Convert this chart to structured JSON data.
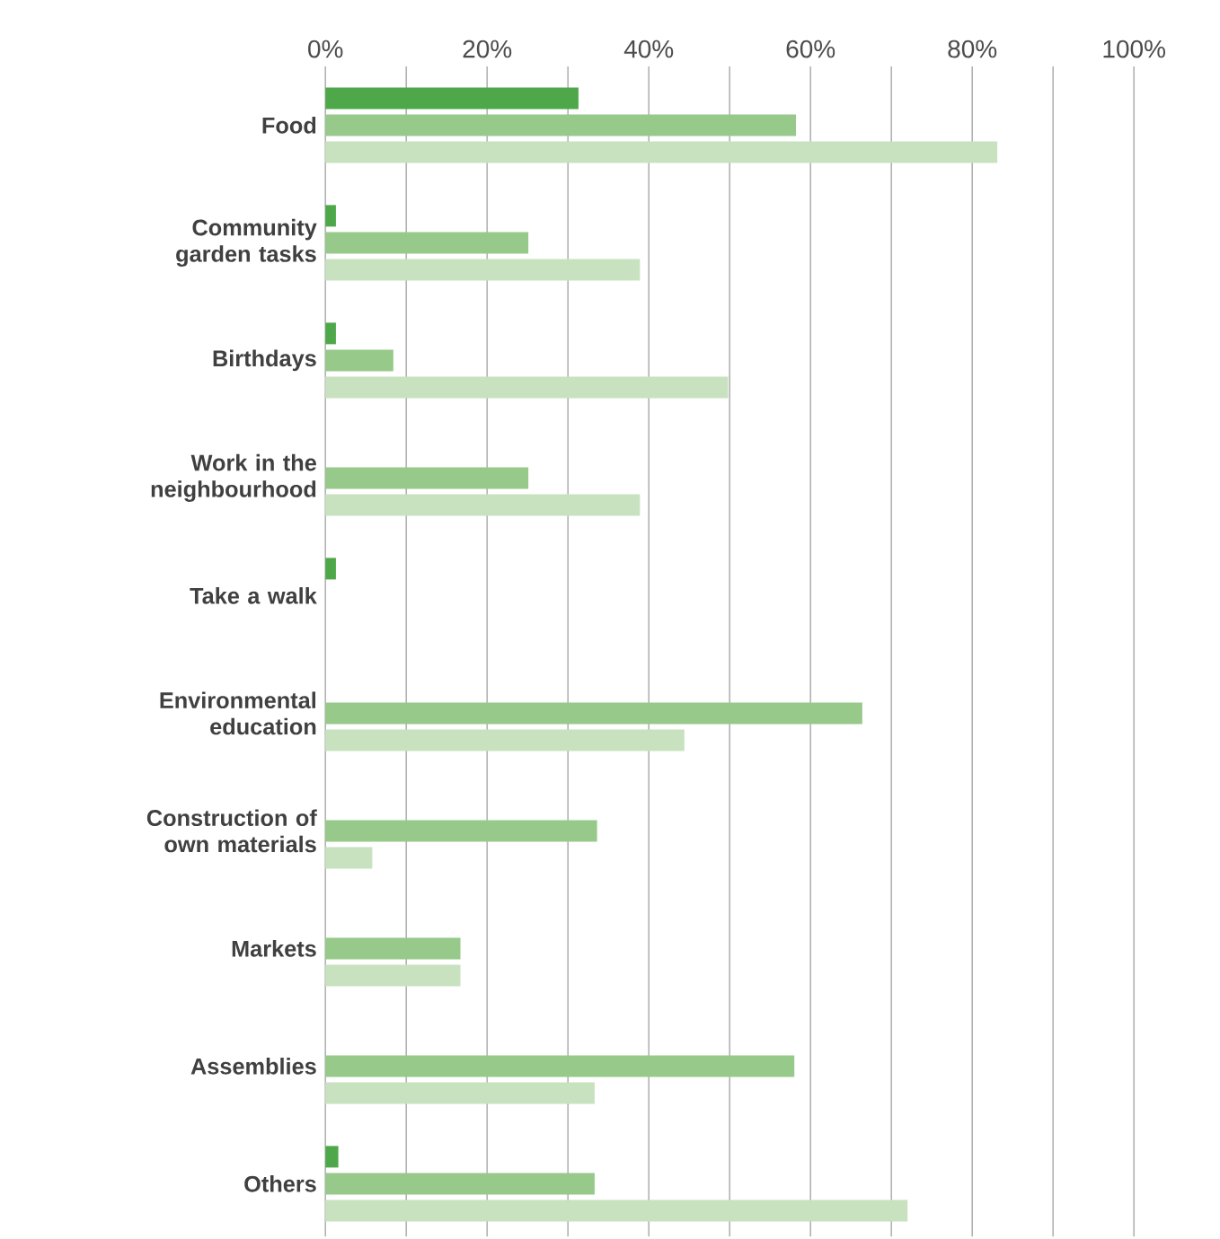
{
  "chart_data": {
    "type": "bar",
    "orientation": "horizontal",
    "categories": [
      "Food",
      "Community garden tasks",
      "Birthdays",
      "Work in the neighbourhood",
      "Take a walk",
      "Environmental education",
      "Construction of own materials",
      "Markets",
      "Assemblies",
      "Others"
    ],
    "series": [
      {
        "color": "#4ea84a",
        "values": [
          31.3,
          1.3,
          1.3,
          null,
          1.3,
          null,
          null,
          null,
          null,
          1.6
        ]
      },
      {
        "color": "#97c98a",
        "values": [
          58.2,
          25.1,
          8.4,
          25.1,
          null,
          66.4,
          33.6,
          16.7,
          58,
          33.3
        ]
      },
      {
        "color": "#c8e2c0",
        "values": [
          83.1,
          38.9,
          49.8,
          38.9,
          null,
          44.4,
          5.8,
          16.7,
          33.3,
          72
        ]
      }
    ],
    "xlim": [
      0,
      100
    ],
    "xticks": [
      {
        "value": 0,
        "label": "0%"
      },
      {
        "value": 10,
        "label": null
      },
      {
        "value": 20,
        "label": "20%"
      },
      {
        "value": 30,
        "label": null
      },
      {
        "value": 40,
        "label": "40%"
      },
      {
        "value": 50,
        "label": null
      },
      {
        "value": 60,
        "label": "60%"
      },
      {
        "value": 70,
        "label": null
      },
      {
        "value": 80,
        "label": "80%"
      },
      {
        "value": 90,
        "label": null
      },
      {
        "value": 100,
        "label": "100%"
      }
    ],
    "grid": "x"
  }
}
